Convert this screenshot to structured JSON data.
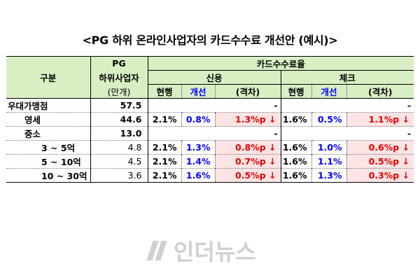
{
  "title": "<PG 하위 온라인사업자의 카드수수료 개선안 (예시)>",
  "header": {
    "category": "구분",
    "pg_line1": "PG",
    "pg_line2": "하위사업자",
    "pg_unit": "(만개)",
    "fee_rate": "카드수수료율",
    "credit": "신용",
    "check": "체크",
    "current": "현행",
    "improved": "개선",
    "gap": "(격차)"
  },
  "rows": [
    {
      "label": "우대가맹점",
      "pg": "57.5",
      "credit_cur": "",
      "credit_imp": "",
      "credit_gap": "-",
      "check_cur": "",
      "check_imp": "",
      "check_gap": "-"
    },
    {
      "label": "영세",
      "pg": "44.6",
      "credit_cur": "2.1%",
      "credit_imp": "0.8%",
      "credit_gap": "1.3%p ↓",
      "check_cur": "1.6%",
      "check_imp": "0.5%",
      "check_gap": "1.1%p ↓"
    },
    {
      "label": "중소",
      "pg": "13.0",
      "credit_cur": "",
      "credit_imp": "",
      "credit_gap": "-",
      "check_cur": "",
      "check_imp": "",
      "check_gap": "-"
    },
    {
      "label": "3 ~ 5억",
      "pg": "4.8",
      "credit_cur": "2.1%",
      "credit_imp": "1.3%",
      "credit_gap": "0.8%p ↓",
      "check_cur": "1.6%",
      "check_imp": "1.0%",
      "check_gap": "0.6%p ↓"
    },
    {
      "label": "5 ~ 10억",
      "pg": "4.5",
      "credit_cur": "2.1%",
      "credit_imp": "1.4%",
      "credit_gap": "0.7%p ↓",
      "check_cur": "1.6%",
      "check_imp": "1.1%",
      "check_gap": "0.5%p ↓"
    },
    {
      "label": "10 ~ 30억",
      "pg": "3.6",
      "credit_cur": "2.1%",
      "credit_imp": "1.6%",
      "credit_gap": "0.5%p ↓",
      "check_cur": "1.6%",
      "check_imp": "1.3%",
      "check_gap": "0.3%p ↓"
    }
  ],
  "watermark": "인더뉴스",
  "colors": {
    "header_bg": "#d8efc4",
    "improved": "#0000ff",
    "gap": "#e60000",
    "gap_bg": "#fde4e4"
  }
}
